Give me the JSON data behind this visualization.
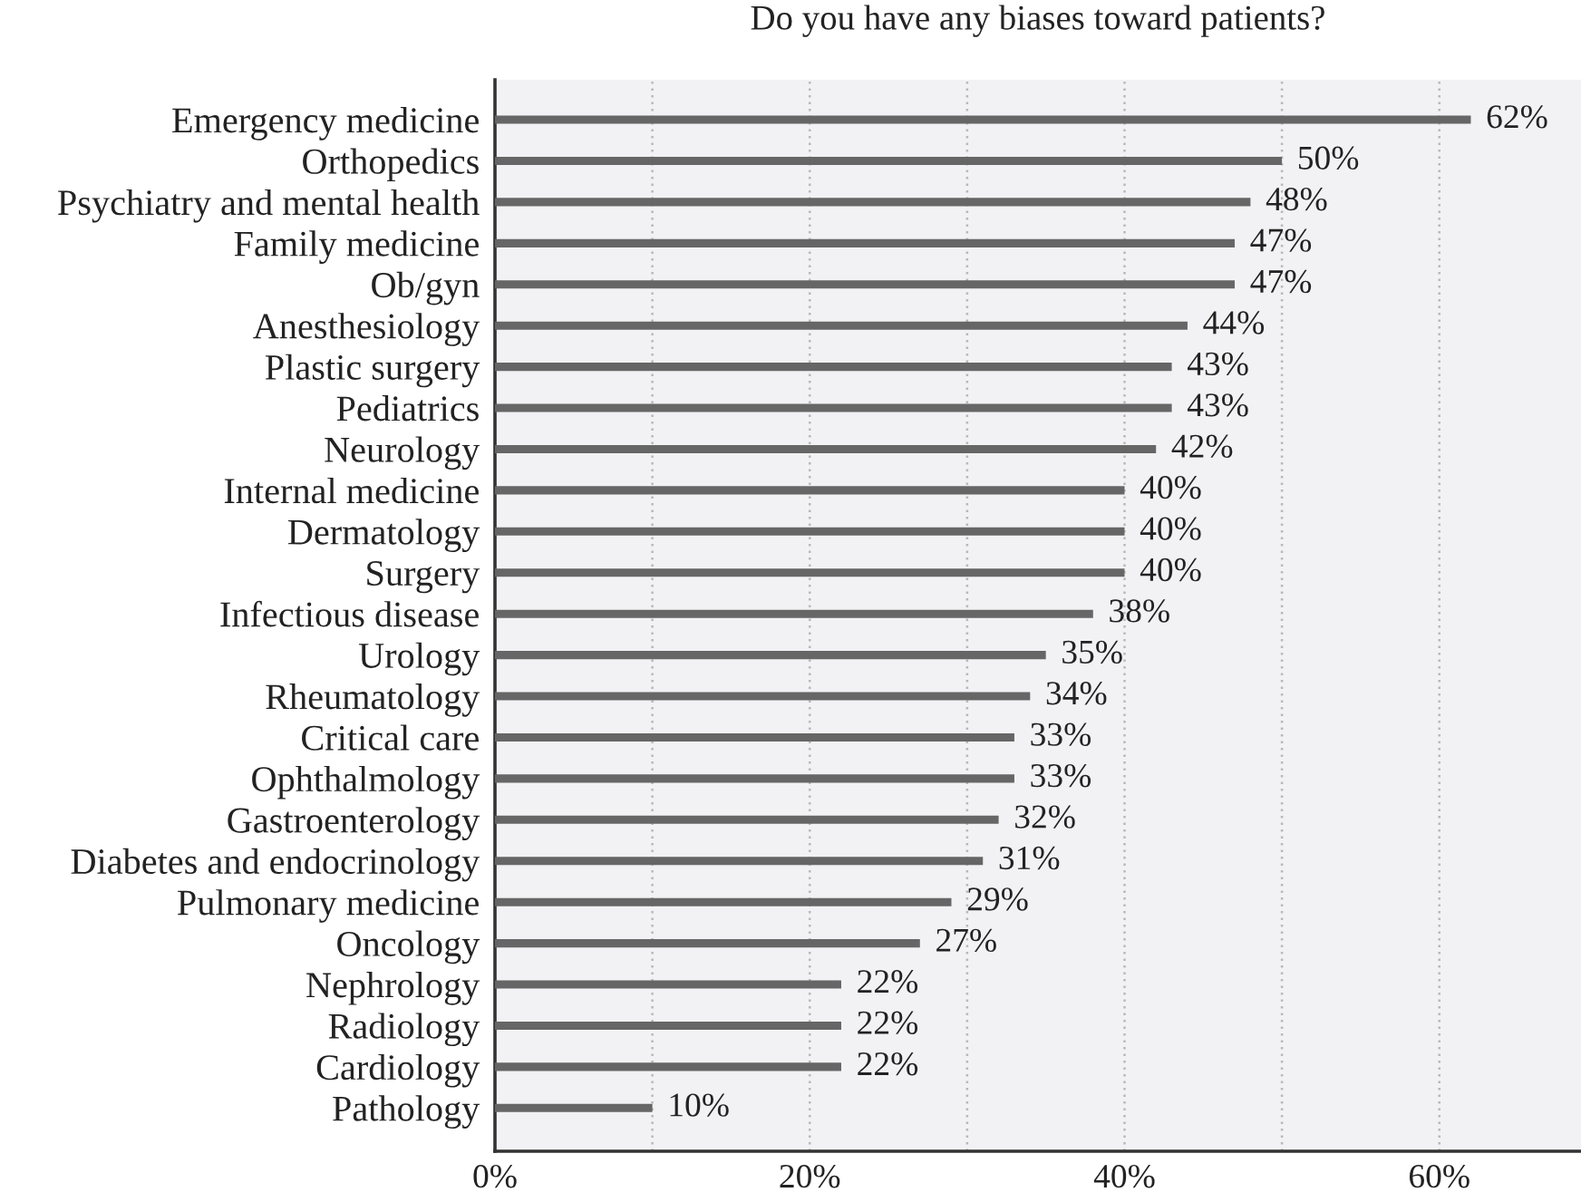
{
  "chart_data": {
    "type": "bar",
    "orientation": "horizontal",
    "title": "Do you have any biases toward patients?",
    "categories": [
      "Emergency medicine",
      "Orthopedics",
      "Psychiatry and mental health",
      "Family medicine",
      "Ob/gyn",
      "Anesthesiology",
      "Plastic surgery",
      "Pediatrics",
      "Neurology",
      "Internal medicine",
      "Dermatology",
      "Surgery",
      "Infectious disease",
      "Urology",
      "Rheumatology",
      "Critical care",
      "Ophthalmology",
      "Gastroenterology",
      "Diabetes and endocrinology",
      "Pulmonary medicine",
      "Oncology",
      "Nephrology",
      "Radiology",
      "Cardiology",
      "Pathology"
    ],
    "values": [
      62,
      50,
      48,
      47,
      47,
      44,
      43,
      43,
      42,
      40,
      40,
      40,
      38,
      35,
      34,
      33,
      33,
      32,
      31,
      29,
      27,
      22,
      22,
      22,
      10
    ],
    "value_labels": [
      "62%",
      "50%",
      "48%",
      "47%",
      "47%",
      "44%",
      "43%",
      "43%",
      "42%",
      "40%",
      "40%",
      "40%",
      "38%",
      "35%",
      "34%",
      "33%",
      "33%",
      "32%",
      "31%",
      "29%",
      "27%",
      "22%",
      "22%",
      "22%",
      "10%"
    ],
    "color": "#666666",
    "xlim": [
      0,
      69
    ],
    "xticks": [
      {
        "value": 0,
        "label": "0%"
      },
      {
        "value": 10,
        "label": null
      },
      {
        "value": 20,
        "label": "20%"
      },
      {
        "value": 30,
        "label": null
      },
      {
        "value": 40,
        "label": "40%"
      },
      {
        "value": 50,
        "label": null
      },
      {
        "value": 60,
        "label": "60%"
      }
    ],
    "grid": "x",
    "legend": false
  }
}
